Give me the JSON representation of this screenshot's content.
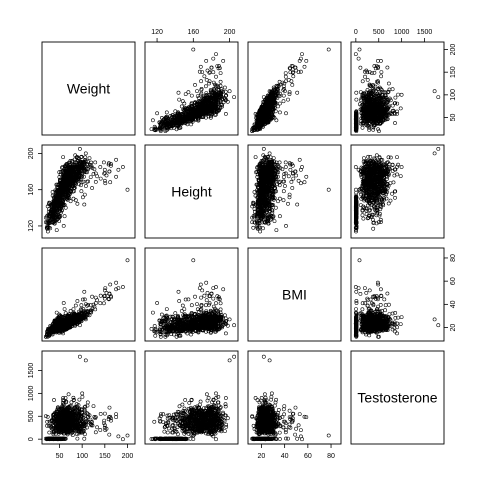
{
  "chart_data": {
    "type": "scatter",
    "matrix_type": "scatterplot-matrix",
    "point_color": "#000000",
    "marker": "open-circle",
    "variables": [
      "Weight",
      "Height",
      "BMI",
      "Testosterone"
    ],
    "axes": {
      "Weight": {
        "range": [
          18,
          210
        ],
        "ticks": [
          50,
          100,
          150,
          200
        ]
      },
      "Height": {
        "range": [
          110,
          206
        ],
        "ticks": [
          120,
          160,
          200
        ]
      },
      "BMI": {
        "range": [
          11,
          86
        ],
        "ticks": [
          20,
          40,
          60,
          80
        ]
      },
      "Testosterone": {
        "range": [
          -40,
          1860
        ],
        "ticks": [
          0,
          500,
          1000,
          1500
        ]
      }
    },
    "tick_placement": {
      "top": [
        "Height",
        "Testosterone"
      ],
      "bottom": [
        "Weight",
        "BMI"
      ],
      "left": [
        "Height",
        "Testosterone"
      ],
      "right": [
        "Weight",
        "BMI"
      ]
    },
    "representative_points": [
      {
        "Weight": 22,
        "Height": 118,
        "BMI": 13,
        "Testosterone": 0
      },
      {
        "Weight": 28,
        "Height": 124,
        "BMI": 14,
        "Testosterone": 0
      },
      {
        "Weight": 35,
        "Height": 130,
        "BMI": 16,
        "Testosterone": 5
      },
      {
        "Weight": 42,
        "Height": 140,
        "BMI": 18,
        "Testosterone": 20
      },
      {
        "Weight": 48,
        "Height": 150,
        "BMI": 19,
        "Testosterone": 120
      },
      {
        "Weight": 55,
        "Height": 160,
        "BMI": 21,
        "Testosterone": 250
      },
      {
        "Weight": 60,
        "Height": 165,
        "BMI": 22,
        "Testosterone": 420
      },
      {
        "Weight": 65,
        "Height": 170,
        "BMI": 23,
        "Testosterone": 620
      },
      {
        "Weight": 70,
        "Height": 175,
        "BMI": 23,
        "Testosterone": 980
      },
      {
        "Weight": 75,
        "Height": 172,
        "BMI": 25,
        "Testosterone": 520
      },
      {
        "Weight": 80,
        "Height": 176,
        "BMI": 26,
        "Testosterone": 450
      },
      {
        "Weight": 85,
        "Height": 178,
        "BMI": 27,
        "Testosterone": 300
      },
      {
        "Weight": 90,
        "Height": 180,
        "BMI": 28,
        "Testosterone": 600
      },
      {
        "Weight": 95,
        "Height": 176,
        "BMI": 31,
        "Testosterone": 350
      },
      {
        "Weight": 100,
        "Height": 185,
        "BMI": 29,
        "Testosterone": 1000
      },
      {
        "Weight": 105,
        "Height": 182,
        "BMI": 32,
        "Testosterone": 280
      },
      {
        "Weight": 110,
        "Height": 188,
        "BMI": 31,
        "Testosterone": 400
      },
      {
        "Weight": 120,
        "Height": 190,
        "BMI": 33,
        "Testosterone": 300
      },
      {
        "Weight": 130,
        "Height": 178,
        "BMI": 41,
        "Testosterone": 150
      },
      {
        "Weight": 140,
        "Height": 185,
        "BMI": 41,
        "Testosterone": 200
      },
      {
        "Weight": 150,
        "Height": 182,
        "BMI": 45,
        "Testosterone": 250
      },
      {
        "Weight": 160,
        "Height": 180,
        "BMI": 49,
        "Testosterone": 100
      },
      {
        "Weight": 180,
        "Height": 182,
        "BMI": 54,
        "Testosterone": 60
      },
      {
        "Weight": 190,
        "Height": 185,
        "BMI": 55,
        "Testosterone": 0
      },
      {
        "Weight": 200,
        "Height": 160,
        "BMI": 78,
        "Testosterone": 80
      },
      {
        "Weight": 95,
        "Height": 205,
        "BMI": 22,
        "Testosterone": 1800
      },
      {
        "Weight": 108,
        "Height": 200,
        "BMI": 27,
        "Testosterone": 1720
      },
      {
        "Weight": 58,
        "Height": 196,
        "BMI": 15,
        "Testosterone": 900
      }
    ]
  }
}
